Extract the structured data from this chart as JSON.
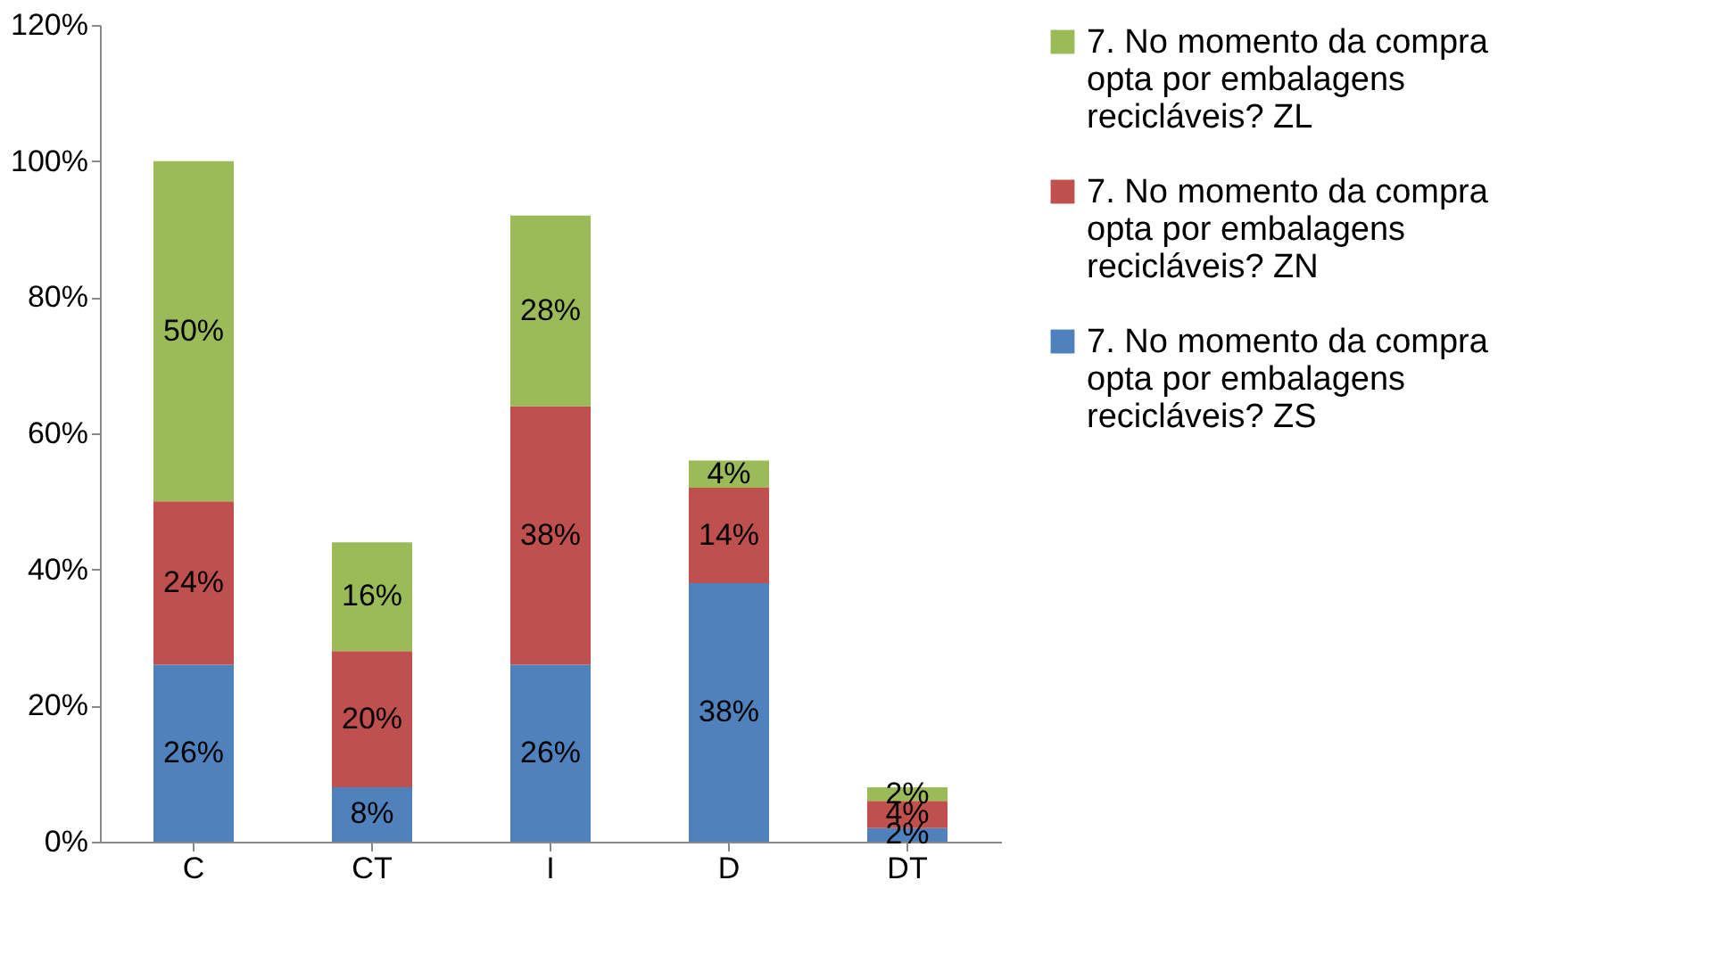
{
  "chart_data": {
    "type": "bar",
    "stacked": true,
    "legend": "right",
    "grid": false,
    "categories": [
      "C",
      "CT",
      "I",
      "D",
      "DT"
    ],
    "ylim": [
      0,
      120
    ],
    "yticks": [
      {
        "value": 0,
        "label": "0%"
      },
      {
        "value": 20,
        "label": "20%"
      },
      {
        "value": 40,
        "label": "40%"
      },
      {
        "value": 60,
        "label": "60%"
      },
      {
        "value": 80,
        "label": "80%"
      },
      {
        "value": 100,
        "label": "100%"
      },
      {
        "value": 120,
        "label": "120%"
      }
    ],
    "series": [
      {
        "name": "7. No momento da compra opta por embalagens recicláveis? ZS",
        "color": "#4f81bd",
        "values": [
          26,
          8,
          26,
          38,
          2
        ],
        "value_labels": [
          "26%",
          "8%",
          "26%",
          "38%",
          "2%"
        ]
      },
      {
        "name": "7. No momento da compra opta por embalagens recicláveis? ZN",
        "color": "#c0504d",
        "values": [
          24,
          20,
          38,
          14,
          4
        ],
        "value_labels": [
          "24%",
          "20%",
          "38%",
          "14%",
          "4%"
        ]
      },
      {
        "name": "7. No momento da compra opta por embalagens recicláveis? ZL",
        "color": "#9bbb59",
        "values": [
          50,
          16,
          28,
          4,
          2
        ],
        "value_labels": [
          "50%",
          "16%",
          "28%",
          "4%",
          "2%"
        ]
      }
    ]
  }
}
